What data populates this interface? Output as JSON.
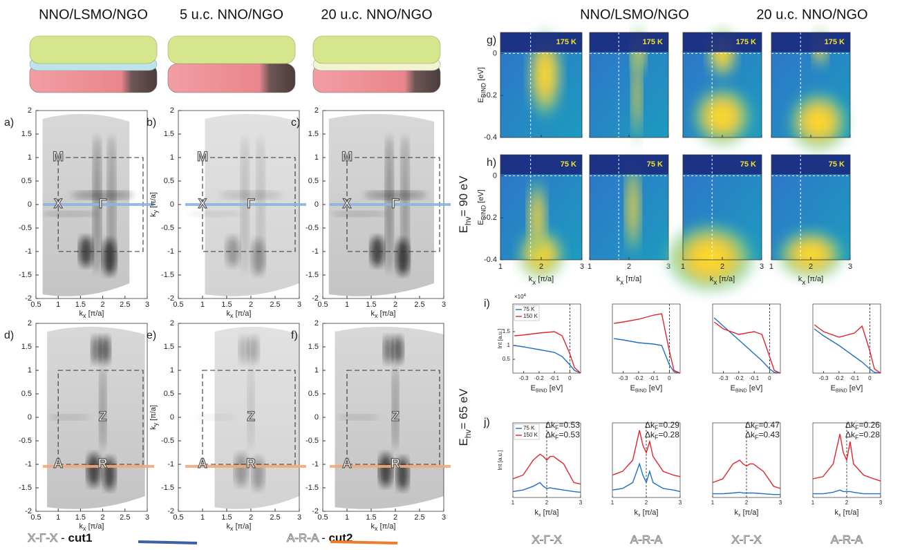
{
  "headers_left": [
    "NNO/LSMO/NGO",
    "5 u.c. NNO/NGO",
    "20 u.c. NNO/NGO"
  ],
  "headers_right": [
    "NNO/LSMO/NGO",
    "20 u.c. NNO/NGO"
  ],
  "maps": {
    "panels": [
      {
        "label": "a)",
        "points": [
          "M",
          "X",
          "Γ"
        ]
      },
      {
        "label": "b)",
        "points": [
          "M",
          "X",
          "Γ"
        ]
      },
      {
        "label": "c)",
        "points": [
          "M",
          "X",
          "Γ"
        ]
      },
      {
        "label": "d)",
        "points": [
          "Z",
          "A",
          "R"
        ]
      },
      {
        "label": "e)",
        "points": [
          "Z",
          "A",
          "R"
        ]
      },
      {
        "label": "f)",
        "points": [
          "Z",
          "A",
          "R"
        ]
      }
    ],
    "xticks": [
      0.5,
      1,
      1.5,
      2,
      2.5,
      3
    ],
    "yticks": [
      -2,
      -1.5,
      -1,
      -0.5,
      0,
      0.5,
      1,
      1.5,
      2
    ],
    "x_label": {
      "main": "k",
      "sub": "x",
      "rest": " [π/a]"
    },
    "y_label": {
      "main": "k",
      "sub": "y",
      "rest": " [π/a]"
    },
    "energies": [
      {
        "main": "E",
        "sub": "hv",
        "rest": "= 90 eV"
      },
      {
        "main": "E",
        "sub": "hv",
        "rest": "= 65 eV"
      }
    ]
  },
  "cuts": [
    {
      "path": "X-Γ-X",
      "sep": " - ",
      "name": "cut1",
      "color": "#3d5ea8"
    },
    {
      "path": "A-R-A",
      "sep": " - ",
      "name": "cut2",
      "color": "#ee7d2b"
    }
  ],
  "spectra": {
    "rows": [
      {
        "label": "g)",
        "temp": "175 K"
      },
      {
        "label": "h)",
        "temp": "75 K"
      }
    ],
    "ylim": [
      -0.4,
      0.1
    ],
    "yticks": [
      0,
      -0.2,
      -0.4
    ],
    "xlim": [
      1,
      3
    ],
    "xticks": [
      1,
      2,
      3
    ],
    "y_label": {
      "main": "E",
      "sub": "BIND",
      "rest": " [eV]"
    },
    "x_label": {
      "main": "k",
      "sub": "x",
      "rest": " [π/a]"
    }
  },
  "edc": {
    "label": "i)",
    "legend": [
      {
        "name": "75 K",
        "color": "#1f6fc0"
      },
      {
        "name": "150 K",
        "color": "#e0242b"
      }
    ],
    "multiplier": {
      "main": "×10",
      "sup": "4"
    },
    "x": [
      -0.36,
      -0.3,
      -0.2,
      -0.1,
      -0.05,
      0,
      0.03,
      0.07
    ],
    "xlim": [
      -0.37,
      0.07
    ],
    "xticks": [
      -0.3,
      -0.2,
      -0.1,
      0
    ],
    "ylim": [
      0,
      2.5
    ],
    "yticks": [
      0.5,
      1,
      1.5
    ],
    "y_label": "Int [a.u.]",
    "x_label": {
      "main": "E",
      "sub": "BIND",
      "rest": " [eV]"
    },
    "panels": [
      {
        "curves": [
          [
            1.0,
            0.95,
            0.85,
            0.75,
            0.6,
            0.3,
            0.1,
            0
          ],
          [
            1.35,
            1.38,
            1.45,
            1.5,
            1.35,
            0.7,
            0.2,
            0
          ]
        ]
      },
      {
        "curves": [
          [
            1.25,
            1.2,
            1.1,
            1.05,
            1.0,
            0.3,
            0.05,
            0
          ],
          [
            1.8,
            1.85,
            1.95,
            2.1,
            2.15,
            0.8,
            0.1,
            0
          ]
        ]
      },
      {
        "curves": [
          [
            2.0,
            1.7,
            1.2,
            0.7,
            0.45,
            0.15,
            0.03,
            0
          ],
          [
            1.85,
            1.6,
            1.4,
            1.5,
            1.4,
            0.6,
            0.1,
            0
          ]
        ]
      },
      {
        "curves": [
          [
            1.6,
            1.35,
            1.0,
            0.6,
            0.4,
            0.15,
            0.03,
            0
          ],
          [
            1.75,
            1.5,
            1.3,
            1.45,
            1.7,
            0.8,
            0.15,
            0
          ]
        ]
      }
    ]
  },
  "mdc": {
    "label": "j)",
    "x": [
      1,
      1.3,
      1.6,
      1.8,
      1.9,
      2,
      2.1,
      2.2,
      2.5,
      2.8,
      3
    ],
    "xlim": [
      1,
      3
    ],
    "xticks": [
      1,
      2,
      3
    ],
    "ylim": [
      0,
      1
    ],
    "y_label": "Int [a.u.]",
    "x_label": {
      "main": "k",
      "sub": "x",
      "rest": " [π/a]"
    },
    "panels": [
      {
        "curves": [
          [
            0.08,
            0.1,
            0.15,
            0.2,
            0.15,
            0.12,
            0.13,
            0.12,
            0.1,
            0.08,
            0.07
          ],
          [
            0.25,
            0.3,
            0.5,
            0.58,
            0.55,
            0.5,
            0.55,
            0.55,
            0.45,
            0.2,
            0.18
          ]
        ],
        "dk": [
          {
            "main": "Δk",
            "sub": "F",
            "rest": "=0.53"
          },
          {
            "main": "Δk",
            "sub": "F",
            "rest": "=0.53"
          }
        ]
      },
      {
        "curves": [
          [
            0.1,
            0.12,
            0.2,
            0.45,
            0.3,
            0.2,
            0.35,
            0.2,
            0.12,
            0.1,
            0.08
          ],
          [
            0.3,
            0.35,
            0.5,
            0.9,
            0.7,
            0.6,
            0.75,
            0.55,
            0.35,
            0.3,
            0.28
          ]
        ],
        "dk": [
          {
            "main": "Δk",
            "sub": "F",
            "rest": "=0.29"
          },
          {
            "main": "Δk",
            "sub": "F",
            "rest": "=0.28"
          }
        ]
      },
      {
        "curves": [
          [
            0.05,
            0.05,
            0.06,
            0.07,
            0.06,
            0.06,
            0.06,
            0.06,
            0.05,
            0.04,
            0.04
          ],
          [
            0.2,
            0.25,
            0.45,
            0.5,
            0.45,
            0.42,
            0.45,
            0.45,
            0.35,
            0.15,
            0.12
          ]
        ],
        "dk": [
          {
            "main": "Δk",
            "sub": "F",
            "rest": "=0.47"
          },
          {
            "main": "Δk",
            "sub": "F",
            "rest": "=0.43"
          }
        ]
      },
      {
        "curves": [
          [
            0.05,
            0.05,
            0.07,
            0.1,
            0.08,
            0.08,
            0.08,
            0.07,
            0.05,
            0.05,
            0.05
          ],
          [
            0.25,
            0.28,
            0.45,
            0.85,
            0.6,
            0.5,
            0.75,
            0.45,
            0.3,
            0.25,
            0.22
          ]
        ],
        "dk": [
          {
            "main": "Δk",
            "sub": "F",
            "rest": "=0.26"
          },
          {
            "main": "Δk",
            "sub": "F",
            "rest": "=0.28"
          }
        ]
      }
    ]
  },
  "bottom_labels": [
    "X-Γ-X",
    "A-R-A",
    "X-Γ-X",
    "A-R-A"
  ]
}
